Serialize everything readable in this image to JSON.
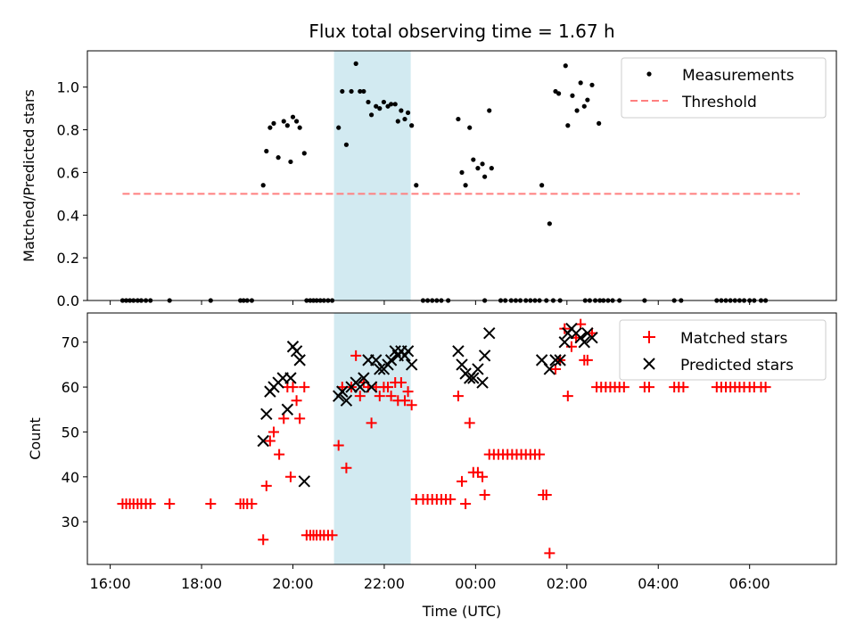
{
  "chart_data": {
    "type": "scatter",
    "title": "Flux total observing time = 1.67 h",
    "xlabel": "Time (UTC)",
    "x_ticks": [
      "16:00",
      "18:00",
      "20:00",
      "22:00",
      "00:00",
      "02:00",
      "04:00",
      "06:00"
    ],
    "x_tick_hours": [
      0,
      2,
      4,
      6,
      8,
      10,
      12,
      14
    ],
    "x_range_hours": [
      -0.5,
      15.9
    ],
    "highlight_span_hours": [
      4.9,
      6.58
    ],
    "colors": {
      "measurements": "#000000",
      "threshold": "#ff7f7f",
      "matched": "#ff0000",
      "predicted": "#000000",
      "highlight": "#add8e6"
    },
    "top": {
      "ylabel": "Matched/Predicted stars",
      "ylim": [
        0,
        1.17
      ],
      "yticks": [
        "0.0",
        "0.2",
        "0.4",
        "0.6",
        "0.8",
        "1.0"
      ],
      "threshold": 0.5,
      "threshold_x_hours": [
        0.27,
        15.1
      ],
      "legend": {
        "placement": "top-right",
        "measurements": "Measurements",
        "threshold": "Threshold"
      },
      "measurements": [
        [
          0.27,
          0
        ],
        [
          0.35,
          0
        ],
        [
          0.43,
          0
        ],
        [
          0.51,
          0
        ],
        [
          0.6,
          0
        ],
        [
          0.68,
          0
        ],
        [
          0.78,
          0
        ],
        [
          0.88,
          0
        ],
        [
          1.3,
          0
        ],
        [
          2.2,
          0
        ],
        [
          2.85,
          0
        ],
        [
          2.92,
          0
        ],
        [
          3.0,
          0
        ],
        [
          3.1,
          0
        ],
        [
          3.35,
          0.54
        ],
        [
          3.42,
          0.7
        ],
        [
          3.5,
          0.81
        ],
        [
          3.58,
          0.83
        ],
        [
          3.68,
          0.67
        ],
        [
          3.8,
          0.84
        ],
        [
          3.88,
          0.82
        ],
        [
          3.95,
          0.65
        ],
        [
          4.0,
          0.86
        ],
        [
          4.08,
          0.84
        ],
        [
          4.15,
          0.81
        ],
        [
          4.25,
          0.69
        ],
        [
          4.3,
          0
        ],
        [
          4.38,
          0
        ],
        [
          4.45,
          0
        ],
        [
          4.52,
          0
        ],
        [
          4.6,
          0
        ],
        [
          4.68,
          0
        ],
        [
          4.77,
          0
        ],
        [
          4.86,
          0
        ],
        [
          5.0,
          0.81
        ],
        [
          5.08,
          0.98
        ],
        [
          5.17,
          0.73
        ],
        [
          5.28,
          0.98
        ],
        [
          5.38,
          1.11
        ],
        [
          5.47,
          0.98
        ],
        [
          5.55,
          0.98
        ],
        [
          5.65,
          0.93
        ],
        [
          5.72,
          0.87
        ],
        [
          5.82,
          0.91
        ],
        [
          5.9,
          0.9
        ],
        [
          5.99,
          0.93
        ],
        [
          6.08,
          0.91
        ],
        [
          6.15,
          0.92
        ],
        [
          6.24,
          0.92
        ],
        [
          6.3,
          0.84
        ],
        [
          6.37,
          0.89
        ],
        [
          6.45,
          0.85
        ],
        [
          6.52,
          0.88
        ],
        [
          6.6,
          0.82
        ],
        [
          6.7,
          0.54
        ],
        [
          6.85,
          0
        ],
        [
          6.95,
          0
        ],
        [
          7.05,
          0
        ],
        [
          7.15,
          0
        ],
        [
          7.25,
          0
        ],
        [
          7.4,
          0
        ],
        [
          7.62,
          0.85
        ],
        [
          7.7,
          0.6
        ],
        [
          7.78,
          0.54
        ],
        [
          7.87,
          0.81
        ],
        [
          7.95,
          0.66
        ],
        [
          8.05,
          0.62
        ],
        [
          8.15,
          0.64
        ],
        [
          8.2,
          0.58
        ],
        [
          8.3,
          0.89
        ],
        [
          8.35,
          0.62
        ],
        [
          8.2,
          0
        ],
        [
          8.55,
          0
        ],
        [
          8.65,
          0
        ],
        [
          8.78,
          0
        ],
        [
          8.88,
          0
        ],
        [
          8.98,
          0
        ],
        [
          9.1,
          0
        ],
        [
          9.2,
          0
        ],
        [
          9.3,
          0
        ],
        [
          9.4,
          0
        ],
        [
          9.55,
          0
        ],
        [
          9.7,
          0
        ],
        [
          9.85,
          0
        ],
        [
          9.45,
          0.54
        ],
        [
          9.62,
          0.36
        ],
        [
          9.75,
          0.98
        ],
        [
          9.82,
          0.97
        ],
        [
          9.97,
          1.1
        ],
        [
          10.02,
          0.82
        ],
        [
          10.12,
          0.96
        ],
        [
          10.22,
          0.89
        ],
        [
          10.3,
          1.02
        ],
        [
          10.38,
          0.91
        ],
        [
          10.45,
          0.94
        ],
        [
          10.55,
          1.01
        ],
        [
          10.7,
          0.83
        ],
        [
          10.4,
          0
        ],
        [
          10.5,
          0
        ],
        [
          10.62,
          0
        ],
        [
          10.72,
          0
        ],
        [
          10.8,
          0
        ],
        [
          10.9,
          0
        ],
        [
          11.0,
          0
        ],
        [
          11.15,
          0
        ],
        [
          11.7,
          0
        ],
        [
          12.35,
          0
        ],
        [
          12.5,
          0
        ],
        [
          13.28,
          0
        ],
        [
          13.38,
          0
        ],
        [
          13.48,
          0
        ],
        [
          13.58,
          0
        ],
        [
          13.68,
          0
        ],
        [
          13.78,
          0
        ],
        [
          13.88,
          0
        ],
        [
          14.0,
          0
        ],
        [
          14.1,
          0
        ],
        [
          14.25,
          0
        ],
        [
          14.35,
          0
        ]
      ]
    },
    "bottom": {
      "ylabel": "Count",
      "ylim": [
        20.5,
        76.5
      ],
      "yticks": [
        "30",
        "40",
        "50",
        "60",
        "70"
      ],
      "legend": {
        "placement": "top-right",
        "matched": "Matched stars",
        "predicted": "Predicted stars"
      },
      "matched": [
        [
          0.27,
          34
        ],
        [
          0.35,
          34
        ],
        [
          0.43,
          34
        ],
        [
          0.51,
          34
        ],
        [
          0.6,
          34
        ],
        [
          0.68,
          34
        ],
        [
          0.78,
          34
        ],
        [
          0.88,
          34
        ],
        [
          1.3,
          34
        ],
        [
          2.2,
          34
        ],
        [
          2.85,
          34
        ],
        [
          2.92,
          34
        ],
        [
          3.0,
          34
        ],
        [
          3.1,
          34
        ],
        [
          3.35,
          26
        ],
        [
          3.42,
          38
        ],
        [
          3.5,
          48
        ],
        [
          3.58,
          50
        ],
        [
          3.7,
          45
        ],
        [
          3.8,
          53
        ],
        [
          3.88,
          60
        ],
        [
          3.95,
          40
        ],
        [
          4.0,
          60
        ],
        [
          4.08,
          57
        ],
        [
          4.15,
          53
        ],
        [
          4.25,
          60
        ],
        [
          4.3,
          27
        ],
        [
          4.38,
          27
        ],
        [
          4.45,
          27
        ],
        [
          4.52,
          27
        ],
        [
          4.6,
          27
        ],
        [
          4.68,
          27
        ],
        [
          4.77,
          27
        ],
        [
          4.86,
          27
        ],
        [
          5.0,
          47
        ],
        [
          5.08,
          60
        ],
        [
          5.17,
          42
        ],
        [
          5.28,
          60
        ],
        [
          5.38,
          67
        ],
        [
          5.47,
          58
        ],
        [
          5.55,
          61
        ],
        [
          5.65,
          60
        ],
        [
          5.72,
          52
        ],
        [
          5.82,
          60
        ],
        [
          5.9,
          58
        ],
        [
          5.99,
          60
        ],
        [
          6.08,
          60
        ],
        [
          6.15,
          58
        ],
        [
          6.24,
          61
        ],
        [
          6.3,
          57
        ],
        [
          6.37,
          61
        ],
        [
          6.45,
          57
        ],
        [
          6.52,
          59
        ],
        [
          6.6,
          56
        ],
        [
          6.7,
          35
        ],
        [
          6.85,
          35
        ],
        [
          6.95,
          35
        ],
        [
          7.05,
          35
        ],
        [
          7.15,
          35
        ],
        [
          7.25,
          35
        ],
        [
          7.35,
          35
        ],
        [
          7.45,
          35
        ],
        [
          7.62,
          58
        ],
        [
          7.7,
          39
        ],
        [
          7.78,
          34
        ],
        [
          7.87,
          52
        ],
        [
          7.95,
          41
        ],
        [
          8.05,
          41
        ],
        [
          8.15,
          40
        ],
        [
          8.2,
          36
        ],
        [
          8.3,
          45
        ],
        [
          8.4,
          45
        ],
        [
          8.5,
          45
        ],
        [
          8.6,
          45
        ],
        [
          8.7,
          45
        ],
        [
          8.8,
          45
        ],
        [
          8.9,
          45
        ],
        [
          9.0,
          45
        ],
        [
          9.1,
          45
        ],
        [
          9.2,
          45
        ],
        [
          9.3,
          45
        ],
        [
          9.4,
          45
        ],
        [
          9.48,
          36
        ],
        [
          9.55,
          36
        ],
        [
          9.62,
          23
        ],
        [
          9.75,
          64
        ],
        [
          9.85,
          66
        ],
        [
          9.95,
          73
        ],
        [
          10.02,
          58
        ],
        [
          10.1,
          69
        ],
        [
          10.2,
          71
        ],
        [
          10.3,
          74
        ],
        [
          10.38,
          66
        ],
        [
          10.45,
          66
        ],
        [
          10.55,
          72
        ],
        [
          10.65,
          60
        ],
        [
          10.75,
          60
        ],
        [
          10.85,
          60
        ],
        [
          10.95,
          60
        ],
        [
          11.05,
          60
        ],
        [
          11.15,
          60
        ],
        [
          11.25,
          60
        ],
        [
          11.7,
          60
        ],
        [
          11.8,
          60
        ],
        [
          12.35,
          60
        ],
        [
          12.45,
          60
        ],
        [
          12.55,
          60
        ],
        [
          13.28,
          60
        ],
        [
          13.38,
          60
        ],
        [
          13.48,
          60
        ],
        [
          13.58,
          60
        ],
        [
          13.68,
          60
        ],
        [
          13.78,
          60
        ],
        [
          13.88,
          60
        ],
        [
          14.0,
          60
        ],
        [
          14.1,
          60
        ],
        [
          14.25,
          60
        ],
        [
          14.35,
          60
        ]
      ],
      "predicted": [
        [
          3.35,
          48
        ],
        [
          3.42,
          54
        ],
        [
          3.5,
          59
        ],
        [
          3.58,
          60
        ],
        [
          3.68,
          61
        ],
        [
          3.78,
          62
        ],
        [
          3.88,
          55
        ],
        [
          3.95,
          62
        ],
        [
          4.0,
          69
        ],
        [
          4.08,
          68
        ],
        [
          4.15,
          66
        ],
        [
          4.25,
          39
        ],
        [
          5.0,
          58
        ],
        [
          5.08,
          59
        ],
        [
          5.17,
          57
        ],
        [
          5.28,
          60
        ],
        [
          5.38,
          61
        ],
        [
          5.47,
          60
        ],
        [
          5.55,
          62
        ],
        [
          5.65,
          66
        ],
        [
          5.72,
          60
        ],
        [
          5.82,
          66
        ],
        [
          5.9,
          64
        ],
        [
          5.99,
          64
        ],
        [
          6.08,
          65
        ],
        [
          6.15,
          66
        ],
        [
          6.24,
          68
        ],
        [
          6.3,
          67
        ],
        [
          6.37,
          68
        ],
        [
          6.45,
          67
        ],
        [
          6.52,
          68
        ],
        [
          6.6,
          65
        ],
        [
          7.62,
          68
        ],
        [
          7.7,
          65
        ],
        [
          7.78,
          63
        ],
        [
          7.87,
          62
        ],
        [
          7.95,
          62
        ],
        [
          8.05,
          64
        ],
        [
          8.15,
          61
        ],
        [
          8.2,
          67
        ],
        [
          8.3,
          72
        ],
        [
          9.45,
          66
        ],
        [
          9.62,
          64
        ],
        [
          9.75,
          66
        ],
        [
          9.85,
          66
        ],
        [
          9.95,
          70
        ],
        [
          10.02,
          72
        ],
        [
          10.1,
          73
        ],
        [
          10.2,
          72
        ],
        [
          10.3,
          71
        ],
        [
          10.38,
          70
        ],
        [
          10.45,
          72
        ],
        [
          10.55,
          71
        ]
      ]
    }
  }
}
